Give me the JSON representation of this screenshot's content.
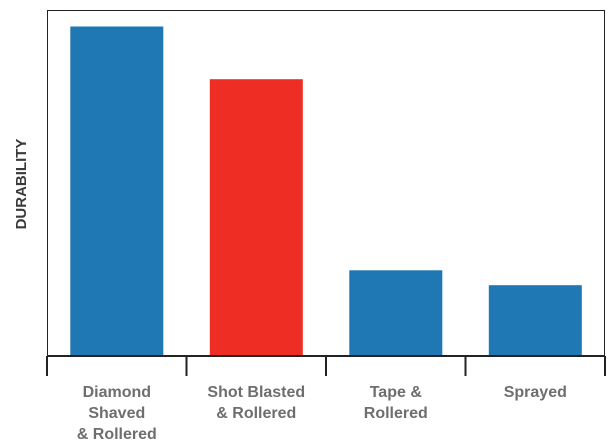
{
  "chart_data": {
    "type": "bar",
    "categories": [
      [
        "Diamond",
        "Shaved",
        "& Rollered"
      ],
      [
        "Shot Blasted",
        "& Rollered"
      ],
      [
        "Tape &",
        "Rollered"
      ],
      [
        "Sprayed"
      ]
    ],
    "values": [
      100,
      84,
      26,
      21.5
    ],
    "bar_colors": [
      "#1f77b4",
      "#ee2e24",
      "#1f77b4",
      "#1f77b4"
    ],
    "ylabel": "DURABILITY",
    "xlabel": "",
    "ylim": [
      0,
      105
    ],
    "grid": false,
    "legend": "none"
  }
}
